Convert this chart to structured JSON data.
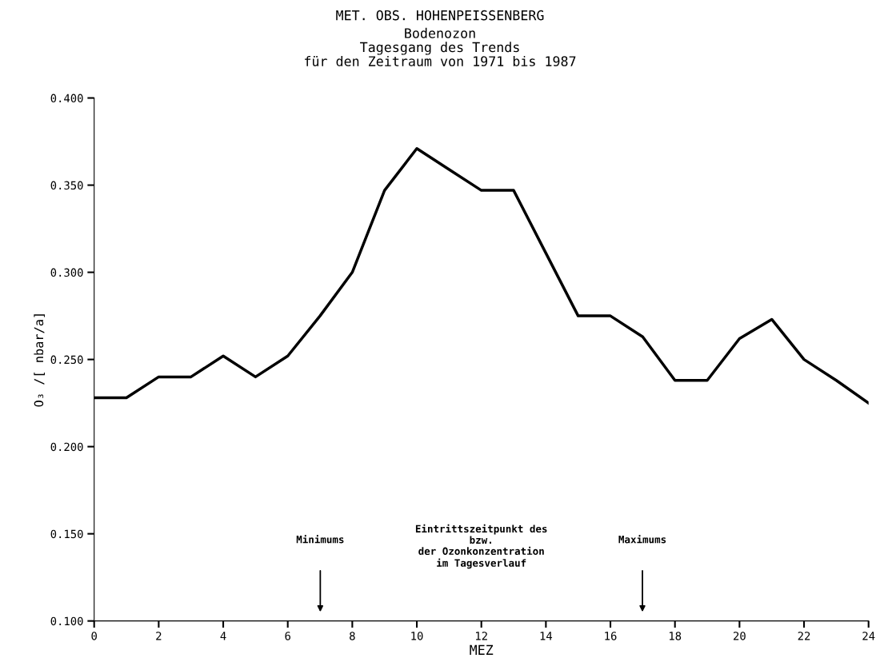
{
  "chart_data": {
    "type": "line",
    "title": "MET. OBS. HOHENPEISSENBERG",
    "subtitle": "Bodenozon\nTagesgang des Trends\nfür den Zeitraum von 1971 bis 1987",
    "xlabel": "MEZ",
    "ylabel": "O₃ /[ nbar/a]",
    "x": [
      0,
      1,
      2,
      3,
      4,
      5,
      6,
      7,
      8,
      9,
      10,
      11,
      12,
      13,
      14,
      15,
      16,
      17,
      18,
      19,
      20,
      21,
      22,
      23,
      24
    ],
    "series": [
      {
        "color": "#000000",
        "values": [
          0.228,
          0.228,
          0.24,
          0.24,
          0.252,
          0.24,
          0.252,
          0.275,
          0.3,
          0.347,
          0.371,
          0.359,
          0.347,
          0.347,
          0.311,
          0.275,
          0.275,
          0.263,
          0.238,
          0.238,
          0.262,
          0.273,
          0.25,
          0.238,
          0.225
        ]
      }
    ],
    "xlim": [
      0,
      24
    ],
    "xticks": [
      0,
      2,
      4,
      6,
      8,
      10,
      12,
      14,
      16,
      18,
      20,
      22,
      24
    ],
    "ylim": [
      0.1,
      0.4
    ],
    "yticks": [
      {
        "value": 0.1,
        "label": "0.100"
      },
      {
        "value": 0.15,
        "label": "0.150"
      },
      {
        "value": 0.2,
        "label": "0.200"
      },
      {
        "value": 0.25,
        "label": "0.250"
      },
      {
        "value": 0.3,
        "label": "0.300"
      },
      {
        "value": 0.35,
        "label": "0.350"
      },
      {
        "value": 0.4,
        "label": "0.400"
      }
    ],
    "grid": false,
    "legend": false,
    "marker": "none",
    "line_style": "solid",
    "annotations": [
      "Minimums",
      "Maximums",
      "Eintrittszeitpunkt des\nbzw.\nder Ozonkonzentration\nim Tagesverlauf"
    ]
  }
}
